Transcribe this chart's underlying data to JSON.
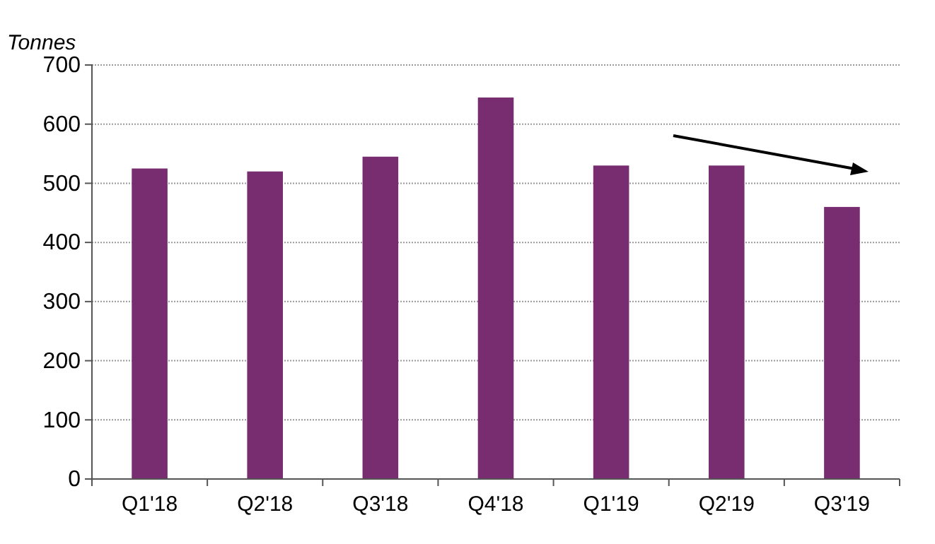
{
  "chart_data": {
    "type": "bar",
    "ylabel": "Tonnes",
    "categories": [
      "Q1'18",
      "Q2'18",
      "Q3'18",
      "Q4'18",
      "Q1'19",
      "Q2'19",
      "Q3'19"
    ],
    "values": [
      525,
      520,
      545,
      645,
      530,
      530,
      460
    ],
    "color": "#772d6f",
    "ylim": [
      0,
      700
    ],
    "yticks": [
      0,
      100,
      200,
      300,
      400,
      500,
      600,
      700
    ],
    "grid": "y"
  }
}
